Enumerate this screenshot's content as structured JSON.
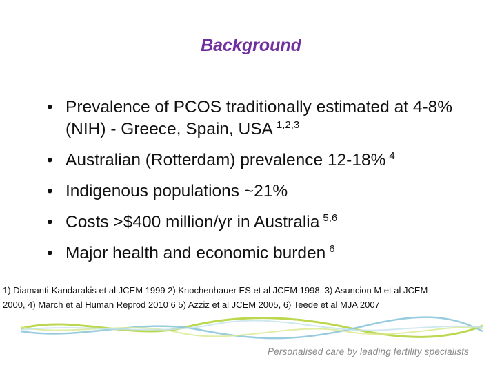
{
  "title": "Background",
  "bullets": [
    {
      "text": "Prevalence of PCOS traditionally estimated at 4-8% (NIH) - Greece, Spain, USA",
      "sup": "1,2,3"
    },
    {
      "text": "Australian (Rotterdam) prevalence 12-18%",
      "sup": "4"
    },
    {
      "text": "Indigenous populations ~21%"
    },
    {
      "text": "Costs >$400 million/yr in Australia",
      "sup": "5,6"
    },
    {
      "text": "Major health and economic burden",
      "sup": "6"
    }
  ],
  "references": [
    "1) Diamanti-Kandarakis et al JCEM 1999 2) Knochenhauer ES et al JCEM 1998, 3) Asuncion M et al JCEM",
    "2000, 4) March et al Human Reprod 2010 6 5) Azziz et al JCEM 2005, 6) Teede et al MJA 2007"
  ],
  "footer": {
    "tagline": "Personalised care by leading fertility specialists"
  }
}
